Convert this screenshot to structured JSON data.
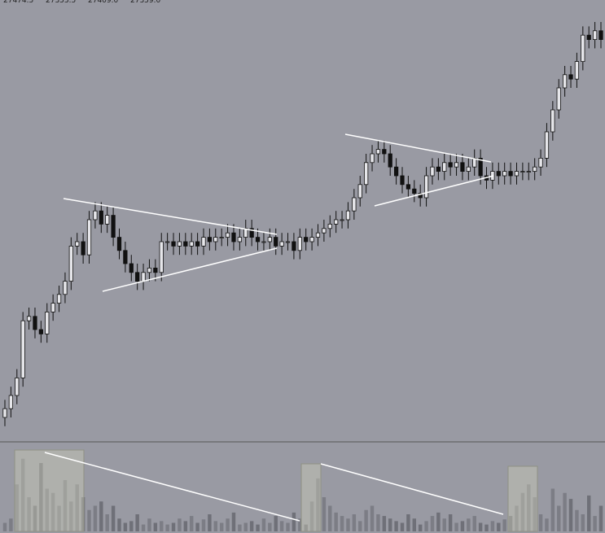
{
  "chart_data": {
    "type": "candlestick",
    "readout": [
      "27474.5",
      "27353.5",
      "27409.0",
      "27359.0"
    ],
    "ylim": [
      0,
      100
    ],
    "volume_lim": [
      0,
      100
    ],
    "open": [
      5,
      7,
      10,
      14,
      27,
      28,
      25,
      24,
      29,
      31,
      33,
      36,
      44,
      45,
      42,
      50,
      52,
      49,
      51,
      46,
      43,
      40,
      38,
      36,
      38,
      39,
      38,
      45,
      45,
      44,
      45,
      44,
      45,
      44,
      46,
      45,
      46,
      46,
      47,
      45,
      46,
      48,
      46,
      45,
      45,
      46,
      44,
      45,
      45,
      43,
      46,
      45,
      46,
      47,
      48,
      49,
      50,
      50,
      52,
      55,
      58,
      63,
      65,
      66,
      65,
      62,
      60,
      58,
      57,
      56,
      55,
      60,
      62,
      61,
      63,
      62,
      63,
      61,
      62,
      64,
      60,
      59,
      61,
      60,
      61,
      60,
      61,
      61,
      61,
      62,
      64,
      70,
      75,
      80,
      83,
      82,
      86,
      92,
      91,
      93
    ],
    "high": [
      9,
      12,
      16,
      29,
      30,
      30,
      27,
      31,
      33,
      35,
      38,
      46,
      47,
      47,
      52,
      54,
      54,
      53,
      53,
      48,
      45,
      42,
      40,
      40,
      41,
      41,
      47,
      47,
      47,
      47,
      47,
      47,
      47,
      48,
      48,
      48,
      48,
      49,
      49,
      48,
      50,
      50,
      48,
      47,
      48,
      48,
      47,
      47,
      47,
      48,
      48,
      48,
      49,
      50,
      51,
      52,
      52,
      54,
      57,
      60,
      65,
      67,
      68,
      68,
      67,
      64,
      62,
      60,
      59,
      58,
      62,
      64,
      64,
      65,
      65,
      65,
      65,
      64,
      66,
      66,
      62,
      63,
      63,
      63,
      63,
      63,
      63,
      63,
      64,
      66,
      72,
      77,
      82,
      85,
      85,
      88,
      94,
      94,
      95,
      95
    ],
    "low": [
      3,
      5,
      8,
      12,
      25,
      23,
      22,
      22,
      27,
      29,
      31,
      34,
      42,
      40,
      40,
      48,
      47,
      47,
      44,
      41,
      38,
      36,
      34,
      34,
      36,
      36,
      36,
      43,
      42,
      42,
      42,
      42,
      42,
      42,
      43,
      43,
      44,
      44,
      43,
      43,
      44,
      44,
      43,
      43,
      43,
      42,
      42,
      43,
      41,
      41,
      43,
      43,
      44,
      45,
      46,
      47,
      48,
      48,
      50,
      53,
      56,
      61,
      63,
      63,
      60,
      58,
      56,
      55,
      54,
      53,
      53,
      58,
      59,
      59,
      60,
      60,
      59,
      59,
      60,
      58,
      57,
      57,
      58,
      58,
      58,
      58,
      59,
      59,
      59,
      60,
      62,
      68,
      73,
      78,
      80,
      80,
      84,
      89,
      89,
      89
    ],
    "close": [
      7,
      10,
      14,
      27,
      28,
      25,
      24,
      29,
      31,
      33,
      36,
      44,
      45,
      42,
      50,
      52,
      49,
      51,
      46,
      43,
      40,
      38,
      36,
      38,
      39,
      38,
      45,
      45,
      44,
      45,
      44,
      45,
      44,
      46,
      45,
      46,
      46,
      47,
      45,
      46,
      48,
      46,
      45,
      45,
      46,
      44,
      45,
      45,
      43,
      46,
      45,
      46,
      47,
      48,
      49,
      50,
      50,
      52,
      55,
      58,
      63,
      65,
      66,
      65,
      62,
      60,
      58,
      57,
      56,
      55,
      60,
      62,
      61,
      63,
      62,
      63,
      61,
      62,
      64,
      60,
      59,
      61,
      60,
      61,
      60,
      61,
      61,
      61,
      62,
      64,
      70,
      75,
      80,
      83,
      82,
      86,
      92,
      91,
      93,
      91
    ],
    "volume": [
      10,
      15,
      55,
      85,
      40,
      30,
      80,
      50,
      45,
      30,
      60,
      35,
      55,
      40,
      25,
      30,
      35,
      20,
      30,
      15,
      10,
      12,
      20,
      8,
      15,
      10,
      12,
      8,
      10,
      15,
      12,
      18,
      10,
      14,
      20,
      12,
      10,
      15,
      22,
      8,
      10,
      12,
      8,
      15,
      10,
      18,
      12,
      10,
      22,
      15,
      8,
      35,
      62,
      40,
      30,
      22,
      18,
      15,
      20,
      12,
      25,
      30,
      20,
      18,
      15,
      12,
      10,
      20,
      15,
      8,
      12,
      18,
      22,
      15,
      20,
      10,
      12,
      15,
      18,
      10,
      8,
      12,
      10,
      14,
      18,
      30,
      45,
      55,
      40,
      20,
      15,
      50,
      30,
      45,
      38,
      25,
      20,
      42,
      18,
      30
    ],
    "up_color": "#e6e6ea",
    "down_color": "#111111",
    "volume_color": "#6f7078"
  }
}
